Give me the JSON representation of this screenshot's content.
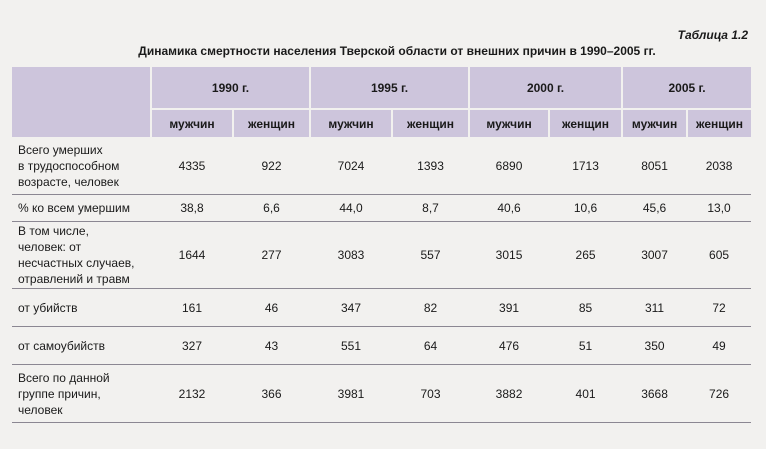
{
  "caption": "Таблица 1.2",
  "title": "Динамика смертности населения Тверской области от внешних причин в 1990–2005 гг.",
  "years": [
    "1990 г.",
    "1995 г.",
    "2000 г.",
    "2005 г."
  ],
  "sub_headers": [
    "мужчин",
    "женщин",
    "мужчин",
    "женщин",
    "мужчин",
    "женщин",
    "мужчин",
    "женщин"
  ],
  "rows": [
    {
      "label_lines": [
        "Всего умерших",
        "в трудоспособном",
        "возрасте, человек"
      ],
      "values": [
        "4335",
        "922",
        "7024",
        "1393",
        "6890",
        "1713",
        "8051",
        "2038"
      ]
    },
    {
      "label_lines": [
        "% ко всем умершим"
      ],
      "values": [
        "38,8",
        "6,6",
        "44,0",
        "8,7",
        "40,6",
        "10,6",
        "45,6",
        "13,0"
      ]
    },
    {
      "label_lines": [
        "В том числе,",
        "человек: от",
        "несчастных случаев,",
        "отравлений и травм"
      ],
      "values": [
        "1644",
        "277",
        "3083",
        "557",
        "3015",
        "265",
        "3007",
        "605"
      ]
    },
    {
      "label_lines": [
        "от убийств"
      ],
      "values": [
        "161",
        "46",
        "347",
        "82",
        "391",
        "85",
        "311",
        "72"
      ]
    },
    {
      "label_lines": [
        "от самоубийств"
      ],
      "values": [
        "327",
        "43",
        "551",
        "64",
        "476",
        "51",
        "350",
        "49"
      ]
    },
    {
      "label_lines": [
        "Всего по данной",
        "группе причин,",
        "человек"
      ],
      "values": [
        "2132",
        "366",
        "3981",
        "703",
        "3882",
        "401",
        "3668",
        "726"
      ]
    }
  ]
}
